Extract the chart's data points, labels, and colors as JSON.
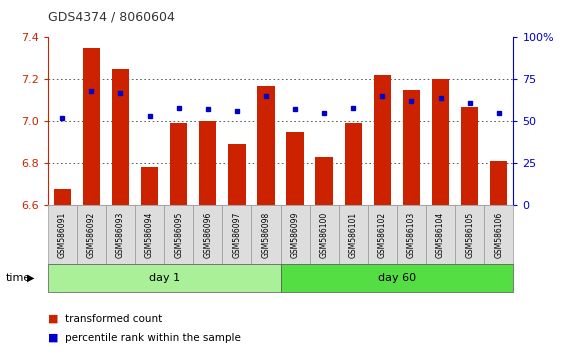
{
  "title": "GDS4374 / 8060604",
  "samples": [
    "GSM586091",
    "GSM586092",
    "GSM586093",
    "GSM586094",
    "GSM586095",
    "GSM586096",
    "GSM586097",
    "GSM586098",
    "GSM586099",
    "GSM586100",
    "GSM586101",
    "GSM586102",
    "GSM586103",
    "GSM586104",
    "GSM586105",
    "GSM586106"
  ],
  "bar_values": [
    6.68,
    7.35,
    7.25,
    6.78,
    6.99,
    7.0,
    6.89,
    7.17,
    6.95,
    6.83,
    6.99,
    7.22,
    7.15,
    7.2,
    7.07,
    6.81
  ],
  "dot_values": [
    52,
    68,
    67,
    53,
    58,
    57,
    56,
    65,
    57,
    55,
    58,
    65,
    62,
    64,
    61,
    55
  ],
  "ylim": [
    6.6,
    7.4
  ],
  "yticks": [
    6.6,
    6.8,
    7.0,
    7.2,
    7.4
  ],
  "y2lim": [
    0,
    100
  ],
  "y2ticks": [
    0,
    25,
    50,
    75,
    100
  ],
  "y2ticklabels": [
    "0",
    "25",
    "50",
    "75",
    "100%"
  ],
  "bar_color": "#cc2200",
  "dot_color": "#0000cc",
  "bar_bottom": 6.6,
  "day1_samples": 8,
  "day60_samples": 8,
  "day1_label": "day 1",
  "day60_label": "day 60",
  "time_label": "time",
  "legend_bar": "transformed count",
  "legend_dot": "percentile rank within the sample",
  "grid_color": "#555555",
  "bg_day1": "#aaf099",
  "bg_day60": "#55dd44",
  "cell_bg": "#dddddd",
  "cell_border": "#999999",
  "left_axis_color": "#cc2200",
  "right_axis_color": "#0000cc",
  "title_color": "#333333"
}
